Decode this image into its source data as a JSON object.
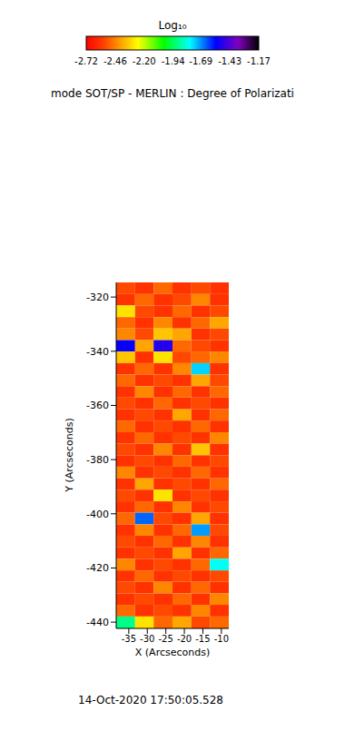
{
  "chart_data": {
    "type": "heatmap",
    "title": "mode SOT/SP - MERLIN : Degree of Polarizati",
    "x_label": "X (Arcseconds)",
    "y_label": "Y (Arcseconds)",
    "annotations": [
      "14-Oct-2020 17:50:05.528"
    ],
    "xlim": [
      -38.4,
      -8.0
    ],
    "xticks": [
      -35,
      -30,
      -25,
      -20,
      -15,
      -10
    ],
    "ylim": [
      -442.3,
      -314.6
    ],
    "yticks": [
      -440,
      -420,
      -400,
      -380,
      -360,
      -340,
      -320
    ],
    "x_edges": [
      -38.4,
      -33.3,
      -28.3,
      -23.2,
      -18.1,
      -13.1,
      -8.0
    ],
    "y_edges": [
      -314.6,
      -318.9,
      -323.1,
      -327.4,
      -331.6,
      -335.9,
      -340.1,
      -344.4,
      -348.6,
      -352.9,
      -357.1,
      -361.4,
      -365.6,
      -369.9,
      -374.1,
      -378.4,
      -382.6,
      -386.9,
      -391.1,
      -395.4,
      -399.6,
      -403.9,
      -408.1,
      -412.4,
      -416.6,
      -420.9,
      -425.1,
      -429.4,
      -433.6,
      -437.9,
      -442.3
    ],
    "cells": [
      [
        -2.55,
        -2.6,
        -2.5,
        -2.6,
        -2.55,
        -2.6
      ],
      [
        -2.6,
        -2.5,
        -2.6,
        -2.55,
        -2.45,
        -2.6
      ],
      [
        -2.3,
        -2.55,
        -2.6,
        -2.5,
        -2.6,
        -2.55
      ],
      [
        -2.5,
        -2.6,
        -2.45,
        -2.6,
        -2.5,
        -2.4
      ],
      [
        -2.45,
        -2.55,
        -2.35,
        -2.4,
        -2.6,
        -2.55
      ],
      [
        -1.55,
        -2.4,
        -1.5,
        -2.5,
        -2.55,
        -2.6
      ],
      [
        -2.35,
        -2.6,
        -2.3,
        -2.55,
        -2.5,
        -2.45
      ],
      [
        -2.6,
        -2.5,
        -2.6,
        -2.45,
        -1.75,
        -2.6
      ],
      [
        -2.5,
        -2.6,
        -2.55,
        -2.6,
        -2.4,
        -2.55
      ],
      [
        -2.6,
        -2.45,
        -2.6,
        -2.5,
        -2.6,
        -2.5
      ],
      [
        -2.55,
        -2.6,
        -2.5,
        -2.6,
        -2.55,
        -2.6
      ],
      [
        -2.6,
        -2.55,
        -2.6,
        -2.4,
        -2.6,
        -2.5
      ],
      [
        -2.5,
        -2.6,
        -2.55,
        -2.6,
        -2.5,
        -2.6
      ],
      [
        -2.6,
        -2.5,
        -2.6,
        -2.55,
        -2.6,
        -2.45
      ],
      [
        -2.55,
        -2.6,
        -2.45,
        -2.6,
        -2.35,
        -2.6
      ],
      [
        -2.6,
        -2.55,
        -2.6,
        -2.5,
        -2.6,
        -2.55
      ],
      [
        -2.45,
        -2.6,
        -2.55,
        -2.6,
        -2.5,
        -2.6
      ],
      [
        -2.6,
        -2.4,
        -2.6,
        -2.55,
        -2.6,
        -2.5
      ],
      [
        -2.55,
        -2.6,
        -2.3,
        -2.6,
        -2.55,
        -2.6
      ],
      [
        -2.6,
        -2.5,
        -2.6,
        -2.45,
        -2.6,
        -2.55
      ],
      [
        -2.5,
        -1.65,
        -2.55,
        -2.6,
        -2.4,
        -2.6
      ],
      [
        -2.6,
        -2.45,
        -2.6,
        -2.5,
        -1.7,
        -2.55
      ],
      [
        -2.55,
        -2.6,
        -2.5,
        -2.6,
        -2.45,
        -2.6
      ],
      [
        -2.6,
        -2.55,
        -2.6,
        -2.4,
        -2.6,
        -2.5
      ],
      [
        -2.45,
        -2.6,
        -2.55,
        -2.6,
        -2.5,
        -1.8
      ],
      [
        -2.6,
        -2.5,
        -2.6,
        -2.55,
        -2.6,
        -2.55
      ],
      [
        -2.55,
        -2.6,
        -2.45,
        -2.6,
        -2.5,
        -2.6
      ],
      [
        -2.6,
        -2.55,
        -2.6,
        -2.5,
        -2.6,
        -2.45
      ],
      [
        -2.5,
        -2.6,
        -2.55,
        -2.6,
        -2.45,
        -2.6
      ],
      [
        -1.9,
        -2.3,
        -2.5,
        -2.4,
        -2.55,
        -2.5
      ]
    ],
    "colorbar": {
      "label": "Log₁₀",
      "range": [
        -2.72,
        -1.17
      ],
      "ticks": [
        -2.72,
        -2.46,
        {
          "value": -2.2,
          "label": "-2.20"
        },
        -1.94,
        -1.69,
        -1.43,
        -1.17
      ]
    }
  }
}
